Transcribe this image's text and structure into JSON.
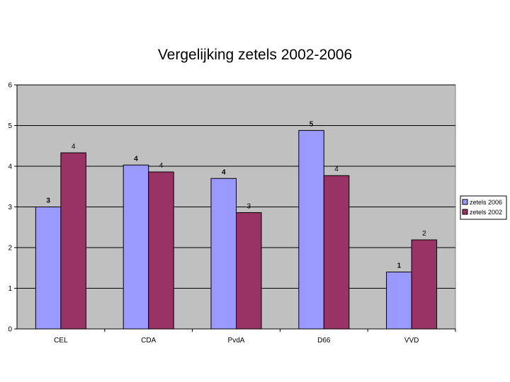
{
  "chart_data": {
    "type": "bar",
    "title": "Vergelijking zetels 2002-2006",
    "xlabel": "",
    "ylabel": "",
    "categories": [
      "CEL",
      "CDA",
      "PvdA",
      "D66",
      "VVD"
    ],
    "series": [
      {
        "name": "zetels 2006",
        "values": [
          3.0,
          4.03,
          3.7,
          4.88,
          1.4
        ],
        "labels": [
          "3",
          "4",
          "4",
          "5",
          "1"
        ],
        "color": "#9999ff"
      },
      {
        "name": "zetels 2002",
        "values": [
          4.33,
          3.86,
          2.86,
          3.77,
          2.19
        ],
        "labels": [
          "4",
          "4",
          "3",
          "4",
          "2"
        ],
        "color": "#993366"
      }
    ],
    "ylim": [
      0,
      6
    ],
    "yticks": [
      0,
      1,
      2,
      3,
      4,
      5,
      6
    ],
    "grid": true,
    "plot_background": "#c0c0c0",
    "legend_position": "right"
  }
}
